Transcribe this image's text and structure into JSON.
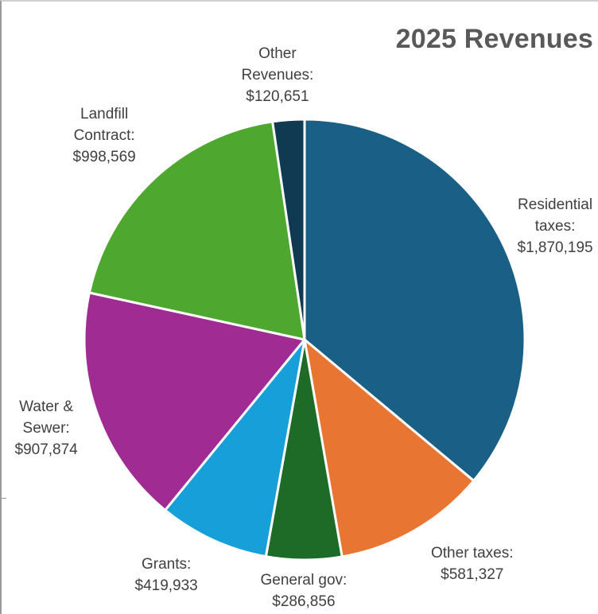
{
  "chart_data": {
    "type": "pie",
    "title": "2025 Revenues",
    "start_angle_deg": 0,
    "direction": "clockwise",
    "slices": [
      {
        "label_lines": [
          "Residential",
          "taxes:",
          "$1,870,195"
        ],
        "name": "Residential taxes",
        "value": 1870195,
        "color": "#1a5f86"
      },
      {
        "label_lines": [
          "Other taxes:",
          "$581,327"
        ],
        "name": "Other taxes",
        "value": 581327,
        "color": "#e97532"
      },
      {
        "label_lines": [
          "General gov:",
          "$286,856"
        ],
        "name": "General gov",
        "value": 286856,
        "color": "#1d6b27"
      },
      {
        "label_lines": [
          "Grants:",
          "$419,933"
        ],
        "name": "Grants",
        "value": 419933,
        "color": "#169fd8"
      },
      {
        "label_lines": [
          "Water &",
          "Sewer:",
          "$907,874"
        ],
        "name": "Water & Sewer",
        "value": 907874,
        "color": "#a02b93"
      },
      {
        "label_lines": [
          "Landfill",
          "Contract:",
          "$998,569"
        ],
        "name": "Landfill Contract",
        "value": 998569,
        "color": "#4ea72e"
      },
      {
        "label_lines": [
          "Other",
          "Revenues:",
          "$120,651"
        ],
        "name": "Other Revenues",
        "value": 120651,
        "color": "#0f3a52"
      }
    ]
  }
}
